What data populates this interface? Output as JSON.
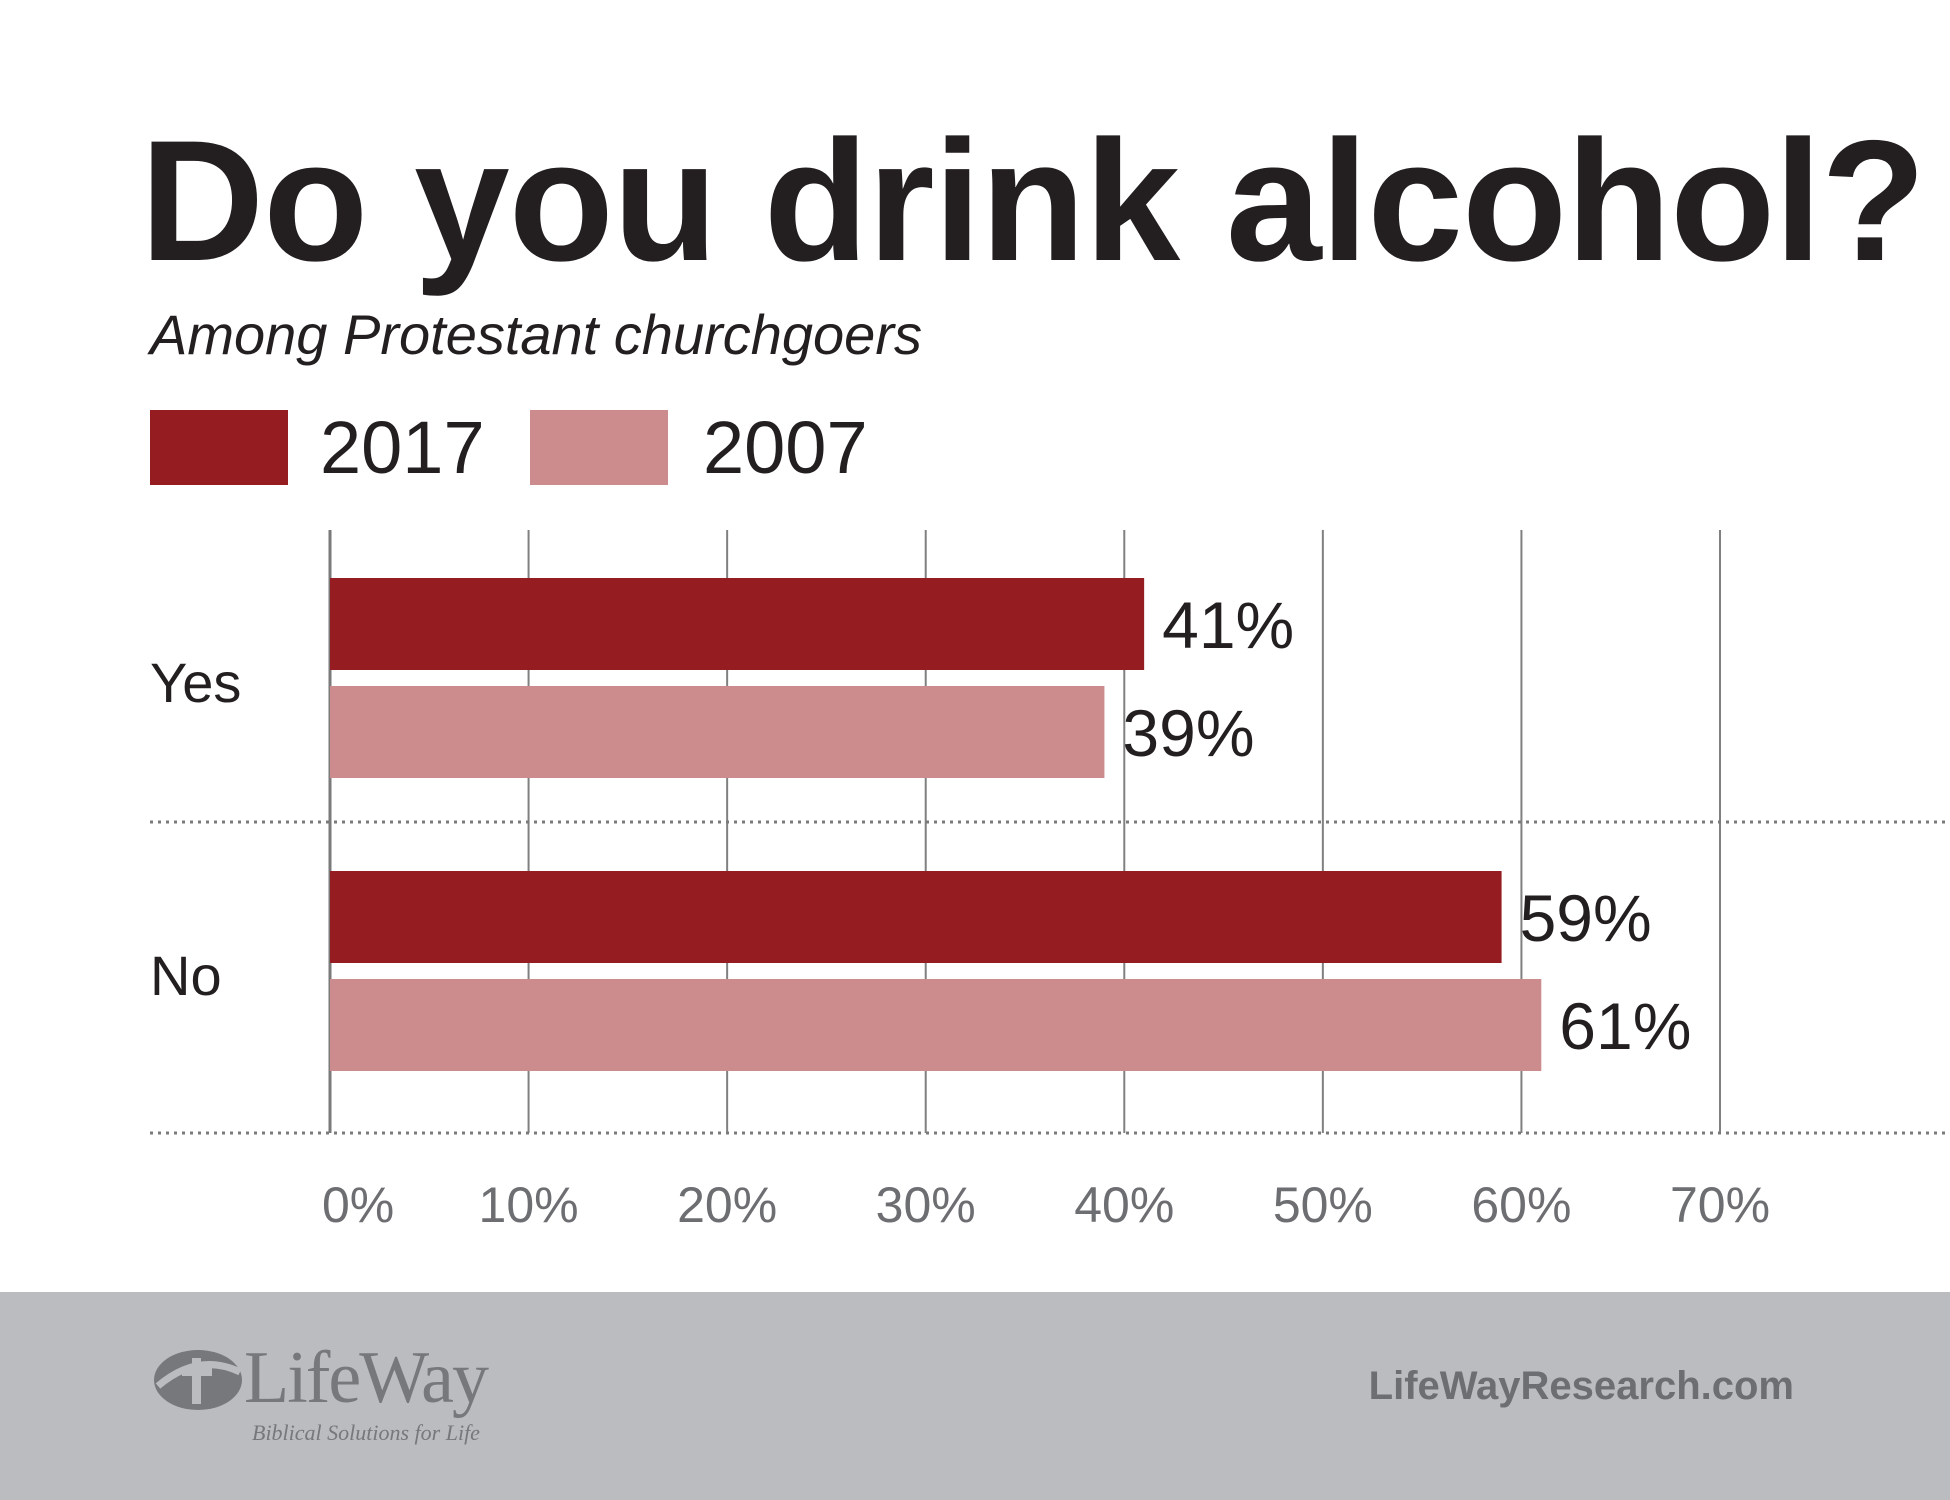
{
  "chart_data": {
    "type": "bar",
    "orientation": "horizontal",
    "title": "Do you drink alcohol?",
    "subtitle": "Among Protestant churchgoers",
    "categories": [
      "Yes",
      "No"
    ],
    "series": [
      {
        "name": "2017",
        "color": "#951c20",
        "values": [
          41,
          59
        ],
        "labels": [
          "41%",
          "59%"
        ]
      },
      {
        "name": "2007",
        "color": "#cc8c8d",
        "values": [
          39,
          61
        ],
        "labels": [
          "39%",
          "61%"
        ]
      }
    ],
    "xlim": [
      0,
      70
    ],
    "xticks": [
      0,
      10,
      20,
      30,
      40,
      50,
      60,
      70
    ],
    "xtick_labels": [
      "0%",
      "10%",
      "20%",
      "30%",
      "40%",
      "50%",
      "60%",
      "70%"
    ],
    "grid": true,
    "legend": "top-left"
  },
  "footer": {
    "logo_text": "LifeWay",
    "logo_tagline": "Biblical Solutions for Life",
    "website": "LifeWayResearch.com"
  }
}
